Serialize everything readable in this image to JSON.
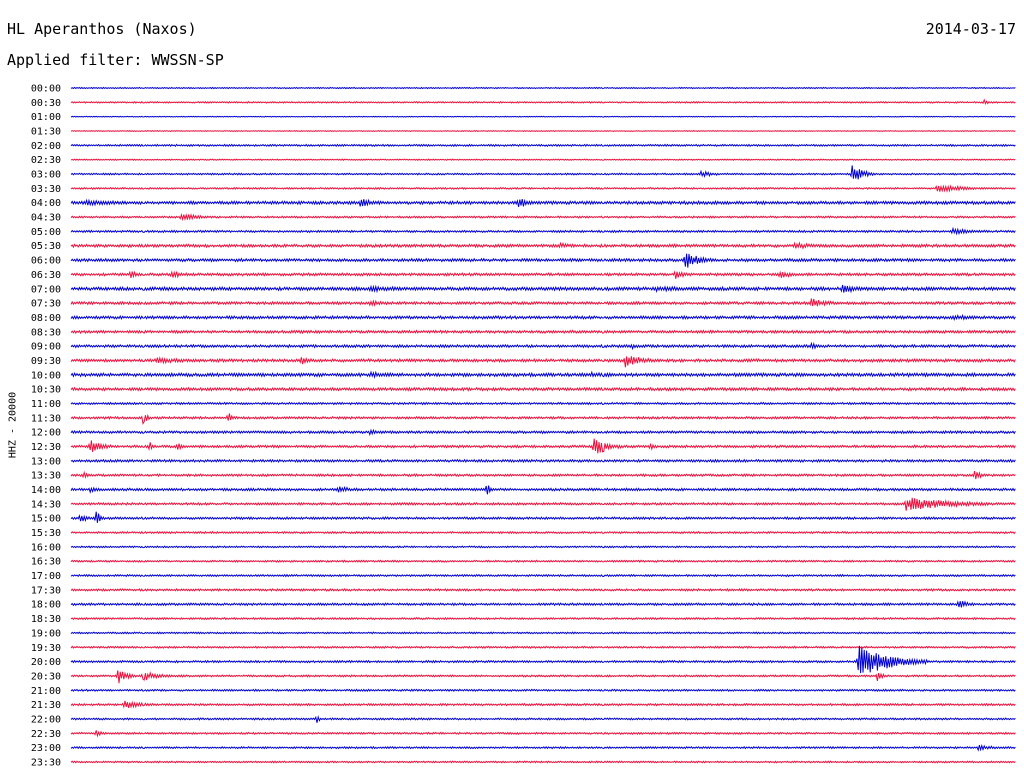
{
  "header": {
    "station": "HL Aperanthos (Naxos)",
    "date": "2014-03-17",
    "filter": "Applied filter: WWSSN-SP"
  },
  "colors": {
    "even_trace": "#0000d6",
    "odd_trace": "#ee0f3c"
  },
  "chart_data": {
    "type": "line",
    "title": "HL Aperanthos (Naxos)",
    "subtitle": "Applied filter: WWSSN-SP",
    "date": "2014-03-17",
    "ylabel": "HHZ - 20000",
    "xlabel": "",
    "grid": false,
    "row_labels": [
      "00:00",
      "00:30",
      "01:00",
      "01:30",
      "02:00",
      "02:30",
      "03:00",
      "03:30",
      "04:00",
      "04:30",
      "05:00",
      "05:30",
      "06:00",
      "06:30",
      "07:00",
      "07:30",
      "08:00",
      "08:30",
      "09:00",
      "09:30",
      "10:00",
      "10:30",
      "11:00",
      "11:30",
      "12:00",
      "12:30",
      "13:00",
      "13:30",
      "14:00",
      "14:30",
      "15:00",
      "15:30",
      "16:00",
      "16:30",
      "17:00",
      "17:30",
      "18:00",
      "18:30",
      "19:00",
      "19:30",
      "20:00",
      "20:30",
      "21:00",
      "21:30",
      "22:00",
      "22:30",
      "23:00",
      "23:30"
    ],
    "row_minutes": 30,
    "baseline_noise": [
      0.6,
      0.7,
      0.4,
      0.4,
      0.9,
      0.6,
      0.8,
      0.8,
      1.5,
      0.9,
      1.0,
      1.4,
      1.4,
      1.3,
      1.6,
      1.3,
      1.4,
      1.3,
      1.3,
      1.4,
      1.6,
      1.4,
      1.0,
      1.1,
      1.2,
      1.2,
      1.2,
      1.1,
      1.2,
      1.1,
      1.1,
      0.9,
      0.8,
      0.9,
      0.9,
      1.0,
      1.1,
      0.9,
      0.8,
      0.9,
      1.0,
      0.9,
      0.9,
      1.0,
      0.9,
      0.9,
      0.9,
      0.8
    ],
    "events": [
      {
        "row": 1,
        "minute": 29.0,
        "amp": 3,
        "dur": 0.3
      },
      {
        "row": 6,
        "minute": 20.0,
        "amp": 3,
        "dur": 1.2
      },
      {
        "row": 6,
        "minute": 24.8,
        "amp": 9,
        "dur": 0.8
      },
      {
        "row": 7,
        "minute": 27.5,
        "amp": 4,
        "dur": 2.0
      },
      {
        "row": 8,
        "minute": 0.5,
        "amp": 3,
        "dur": 3.0
      },
      {
        "row": 8,
        "minute": 9.2,
        "amp": 7,
        "dur": 0.6
      },
      {
        "row": 8,
        "minute": 14.2,
        "amp": 7,
        "dur": 0.6
      },
      {
        "row": 9,
        "minute": 3.5,
        "amp": 4,
        "dur": 1.2
      },
      {
        "row": 10,
        "minute": 28.0,
        "amp": 3,
        "dur": 1.5
      },
      {
        "row": 11,
        "minute": 15.5,
        "amp": 3,
        "dur": 1.0
      },
      {
        "row": 11,
        "minute": 23.0,
        "amp": 4,
        "dur": 1.2
      },
      {
        "row": 12,
        "minute": 19.5,
        "amp": 9,
        "dur": 1.0
      },
      {
        "row": 13,
        "minute": 1.9,
        "amp": 4,
        "dur": 0.5
      },
      {
        "row": 13,
        "minute": 3.2,
        "amp": 5,
        "dur": 0.6
      },
      {
        "row": 13,
        "minute": 19.2,
        "amp": 6,
        "dur": 0.5
      },
      {
        "row": 13,
        "minute": 22.5,
        "amp": 4,
        "dur": 1.0
      },
      {
        "row": 14,
        "minute": 9.5,
        "amp": 3,
        "dur": 3.0
      },
      {
        "row": 14,
        "minute": 18.5,
        "amp": 3,
        "dur": 3.0
      },
      {
        "row": 14,
        "minute": 24.5,
        "amp": 5,
        "dur": 1.0
      },
      {
        "row": 15,
        "minute": 9.5,
        "amp": 3,
        "dur": 1.0
      },
      {
        "row": 15,
        "minute": 23.5,
        "amp": 5,
        "dur": 1.2
      },
      {
        "row": 16,
        "minute": 28.0,
        "amp": 3,
        "dur": 2.0
      },
      {
        "row": 18,
        "minute": 17.8,
        "amp": 3,
        "dur": 0.6
      },
      {
        "row": 18,
        "minute": 23.5,
        "amp": 3,
        "dur": 0.8
      },
      {
        "row": 19,
        "minute": 2.7,
        "amp": 3,
        "dur": 2.5
      },
      {
        "row": 19,
        "minute": 7.3,
        "amp": 5,
        "dur": 0.6
      },
      {
        "row": 19,
        "minute": 17.6,
        "amp": 7,
        "dur": 1.2
      },
      {
        "row": 20,
        "minute": 9.5,
        "amp": 3,
        "dur": 2.5
      },
      {
        "row": 20,
        "minute": 16.5,
        "amp": 3,
        "dur": 2.0
      },
      {
        "row": 23,
        "minute": 2.3,
        "amp": 7,
        "dur": 0.3
      },
      {
        "row": 23,
        "minute": 5.0,
        "amp": 6,
        "dur": 0.3
      },
      {
        "row": 24,
        "minute": 9.5,
        "amp": 3,
        "dur": 0.6
      },
      {
        "row": 25,
        "minute": 0.6,
        "amp": 7,
        "dur": 0.9
      },
      {
        "row": 25,
        "minute": 2.5,
        "amp": 5,
        "dur": 0.3
      },
      {
        "row": 25,
        "minute": 3.4,
        "amp": 4,
        "dur": 0.3
      },
      {
        "row": 25,
        "minute": 16.6,
        "amp": 10,
        "dur": 1.0
      },
      {
        "row": 25,
        "minute": 18.4,
        "amp": 4,
        "dur": 0.3
      },
      {
        "row": 27,
        "minute": 0.4,
        "amp": 4,
        "dur": 0.4
      },
      {
        "row": 27,
        "minute": 28.7,
        "amp": 5,
        "dur": 0.5
      },
      {
        "row": 28,
        "minute": 0.6,
        "amp": 3,
        "dur": 0.8
      },
      {
        "row": 28,
        "minute": 8.5,
        "amp": 4,
        "dur": 0.8
      },
      {
        "row": 28,
        "minute": 13.2,
        "amp": 6,
        "dur": 0.3
      },
      {
        "row": 29,
        "minute": 26.5,
        "amp": 7,
        "dur": 3.5
      },
      {
        "row": 30,
        "minute": 0.3,
        "amp": 5,
        "dur": 0.5
      },
      {
        "row": 30,
        "minute": 0.8,
        "amp": 9,
        "dur": 0.3
      },
      {
        "row": 36,
        "minute": 28.2,
        "amp": 6,
        "dur": 0.6
      },
      {
        "row": 40,
        "minute": 25.0,
        "amp": 17,
        "dur": 2.2
      },
      {
        "row": 41,
        "minute": 1.5,
        "amp": 8,
        "dur": 0.6
      },
      {
        "row": 41,
        "minute": 2.3,
        "amp": 5,
        "dur": 1.2
      },
      {
        "row": 41,
        "minute": 25.6,
        "amp": 5,
        "dur": 0.4
      },
      {
        "row": 43,
        "minute": 1.7,
        "amp": 5,
        "dur": 1.2
      },
      {
        "row": 44,
        "minute": 7.8,
        "amp": 5,
        "dur": 0.2
      },
      {
        "row": 45,
        "minute": 0.8,
        "amp": 3,
        "dur": 0.5
      },
      {
        "row": 46,
        "minute": 28.8,
        "amp": 3,
        "dur": 1.2
      }
    ]
  }
}
